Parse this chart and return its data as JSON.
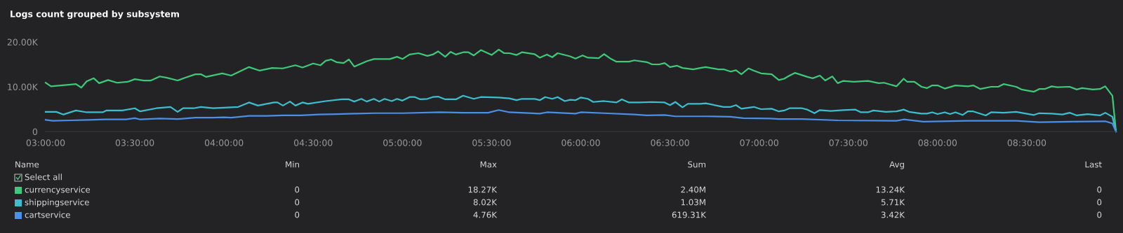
{
  "chart_data": {
    "type": "line",
    "title": "Logs count grouped by subsystem",
    "xticks": [
      {
        "value": 3.0,
        "label": "03:00:00"
      },
      {
        "value": 3.5,
        "label": "03:30:00"
      },
      {
        "value": 4.0,
        "label": "04:00:00"
      },
      {
        "value": 4.5,
        "label": "04:30:00"
      },
      {
        "value": 5.0,
        "label": "05:00:00"
      },
      {
        "value": 5.5,
        "label": "05:30:00"
      },
      {
        "value": 6.0,
        "label": "06:00:00"
      },
      {
        "value": 6.5,
        "label": "06:30:00"
      },
      {
        "value": 7.0,
        "label": "07:00:00"
      },
      {
        "value": 7.5,
        "label": "07:30:00"
      },
      {
        "value": 8.0,
        "label": "08:00:00"
      },
      {
        "value": 8.5,
        "label": "08:30:00"
      }
    ],
    "xlim": [
      3.0,
      9.0
    ],
    "ylim": [
      0,
      20000
    ],
    "yticks": [
      {
        "value": 0,
        "label": "0"
      },
      {
        "value": 10000,
        "label": "10.00K"
      },
      {
        "value": 20000,
        "label": "20.00K"
      }
    ],
    "grid": false,
    "legend": "bottom",
    "marker": "none",
    "line_style": "solid",
    "annotations": [
      "Name",
      "Min",
      "Max",
      "Sum",
      "Avg",
      "Last",
      "Select all",
      "0",
      "18.27K",
      "2.40M",
      "13.24K",
      "0",
      "0",
      "8.02K",
      "1.03M",
      "5.71K",
      "0",
      "0",
      "4.76K",
      "619.31K",
      "3.42K",
      "0"
    ],
    "series": [
      {
        "name": "currencyservice",
        "color": "#3ec97a",
        "x": [
          3.0,
          3.03,
          3.14,
          3.17,
          3.2,
          3.23,
          3.27,
          3.3,
          3.35,
          3.4,
          3.46,
          3.5,
          3.55,
          3.59,
          3.64,
          3.68,
          3.74,
          3.78,
          3.84,
          3.87,
          3.9,
          3.99,
          4.04,
          4.14,
          4.2,
          4.27,
          4.33,
          4.4,
          4.44,
          4.5,
          4.54,
          4.57,
          4.6,
          4.63,
          4.67,
          4.7,
          4.73,
          4.8,
          4.84,
          4.93,
          4.97,
          5.0,
          5.04,
          5.09,
          5.14,
          5.17,
          5.2,
          5.24,
          5.27,
          5.3,
          5.34,
          5.37,
          5.4,
          5.44,
          5.5,
          5.54,
          5.57,
          5.6,
          5.64,
          5.67,
          5.74,
          5.77,
          5.81,
          5.84,
          5.87,
          5.94,
          5.97,
          6.01,
          6.04,
          6.1,
          6.13,
          6.17,
          6.2,
          6.27,
          6.3,
          6.37,
          6.4,
          6.44,
          6.47,
          6.5,
          6.54,
          6.57,
          6.63,
          6.67,
          6.7,
          6.77,
          6.8,
          6.84,
          6.87,
          6.9,
          6.94,
          6.97,
          7.01,
          7.07,
          7.11,
          7.14,
          7.17,
          7.2,
          7.24,
          7.27,
          7.3,
          7.34,
          7.37,
          7.41,
          7.44,
          7.47,
          7.53,
          7.61,
          7.67,
          7.7,
          7.77,
          7.81,
          7.83,
          7.87,
          7.91,
          7.94,
          7.97,
          8.0,
          8.04,
          8.1,
          8.17,
          8.2,
          8.24,
          8.3,
          8.34,
          8.37,
          8.44,
          8.47,
          8.54,
          8.57,
          8.6,
          8.64,
          8.67,
          8.74,
          8.78,
          8.81,
          8.87,
          8.91,
          8.94,
          8.98,
          9.0
        ],
        "values": [
          10900,
          10100,
          10500,
          10600,
          9800,
          11200,
          11900,
          10800,
          11500,
          10900,
          11100,
          11700,
          11400,
          11400,
          12300,
          12000,
          11400,
          12000,
          12800,
          12800,
          12200,
          13000,
          12500,
          14400,
          13600,
          14200,
          14100,
          14800,
          14300,
          15200,
          14800,
          15800,
          16100,
          15500,
          15300,
          16100,
          14500,
          15700,
          16200,
          16200,
          16700,
          16200,
          17200,
          17500,
          16900,
          17200,
          17900,
          16700,
          17800,
          17200,
          17700,
          17700,
          17000,
          18200,
          17100,
          18300,
          17500,
          17500,
          17100,
          17700,
          17300,
          16500,
          17200,
          16600,
          17500,
          16800,
          16300,
          17000,
          16500,
          16400,
          17300,
          16200,
          15600,
          15600,
          15900,
          15500,
          15000,
          15000,
          15300,
          14400,
          14700,
          14200,
          13900,
          14200,
          14400,
          13900,
          13900,
          13400,
          13700,
          12800,
          14100,
          13600,
          13000,
          12800,
          11500,
          11800,
          12500,
          13100,
          12600,
          12200,
          11900,
          12500,
          11400,
          12300,
          10800,
          11300,
          11100,
          11300,
          10800,
          10900,
          10100,
          11800,
          11100,
          11100,
          10000,
          9700,
          10300,
          10300,
          9600,
          10300,
          10100,
          10300,
          9500,
          10000,
          10000,
          10600,
          10000,
          9400,
          8900,
          9500,
          9500,
          10100,
          9900,
          10000,
          9400,
          9700,
          9400,
          9500,
          10100,
          8000,
          0
        ]
      },
      {
        "name": "shippingservice",
        "color": "#3bbfcf",
        "x": [
          3.0,
          3.06,
          3.1,
          3.17,
          3.23,
          3.32,
          3.34,
          3.43,
          3.5,
          3.53,
          3.62,
          3.7,
          3.74,
          3.77,
          3.83,
          3.87,
          3.94,
          4.08,
          4.14,
          4.19,
          4.28,
          4.3,
          4.33,
          4.37,
          4.4,
          4.44,
          4.47,
          4.57,
          4.66,
          4.7,
          4.73,
          4.77,
          4.8,
          4.84,
          4.87,
          4.9,
          4.94,
          4.97,
          5.0,
          5.04,
          5.07,
          5.1,
          5.14,
          5.17,
          5.2,
          5.24,
          5.3,
          5.34,
          5.4,
          5.44,
          5.54,
          5.6,
          5.64,
          5.67,
          5.74,
          5.77,
          5.8,
          5.84,
          5.87,
          5.91,
          5.94,
          5.97,
          6.0,
          6.04,
          6.07,
          6.13,
          6.2,
          6.23,
          6.27,
          6.33,
          6.4,
          6.47,
          6.5,
          6.53,
          6.57,
          6.6,
          6.67,
          6.7,
          6.8,
          6.84,
          6.87,
          6.9,
          6.97,
          7.01,
          7.07,
          7.11,
          7.14,
          7.17,
          7.24,
          7.27,
          7.31,
          7.34,
          7.4,
          7.47,
          7.54,
          7.57,
          7.61,
          7.64,
          7.71,
          7.77,
          7.81,
          7.84,
          7.91,
          7.94,
          7.97,
          8.0,
          8.04,
          8.07,
          8.1,
          8.14,
          8.17,
          8.2,
          8.27,
          8.3,
          8.37,
          8.44,
          8.54,
          8.57,
          8.64,
          8.7,
          8.74,
          8.78,
          8.84,
          8.91,
          8.94,
          8.98,
          9.0
        ],
        "values": [
          4400,
          4400,
          3800,
          4700,
          4300,
          4300,
          4700,
          4700,
          5200,
          4500,
          5200,
          5500,
          4400,
          5200,
          5200,
          5500,
          5200,
          5500,
          6500,
          5800,
          6500,
          6500,
          5800,
          6700,
          5800,
          6500,
          6200,
          6800,
          7200,
          7200,
          6700,
          7300,
          6700,
          7300,
          6700,
          7300,
          6800,
          7300,
          6900,
          7700,
          7700,
          7200,
          7300,
          7700,
          7800,
          7200,
          7200,
          8000,
          7300,
          7700,
          7600,
          7400,
          7000,
          7300,
          7300,
          7000,
          7700,
          7300,
          7700,
          6800,
          7100,
          7000,
          7600,
          7300,
          6600,
          6800,
          6500,
          7200,
          6500,
          6500,
          6600,
          6500,
          5900,
          6600,
          5400,
          6200,
          6200,
          6300,
          5500,
          5500,
          5900,
          5100,
          5500,
          5000,
          5100,
          4500,
          4700,
          5200,
          5200,
          4900,
          4100,
          4800,
          4600,
          4800,
          4900,
          4300,
          4300,
          4700,
          4400,
          4500,
          4900,
          4400,
          4000,
          4000,
          4300,
          3900,
          4300,
          3900,
          4300,
          3700,
          4500,
          4500,
          3600,
          4300,
          4200,
          4400,
          3700,
          4100,
          4000,
          3800,
          4200,
          3600,
          3900,
          3600,
          4200,
          3300,
          0
        ]
      },
      {
        "name": "cartservice",
        "color": "#4a8fe8",
        "x": [
          3.0,
          3.04,
          3.14,
          3.24,
          3.33,
          3.45,
          3.5,
          3.53,
          3.64,
          3.74,
          3.84,
          3.94,
          4.0,
          4.04,
          4.14,
          4.24,
          4.33,
          4.43,
          4.53,
          4.63,
          4.73,
          4.84,
          4.94,
          5.0,
          5.21,
          5.34,
          5.48,
          5.54,
          5.6,
          5.77,
          5.81,
          5.97,
          6.0,
          6.13,
          6.3,
          6.37,
          6.47,
          6.53,
          6.7,
          6.84,
          6.91,
          7.06,
          7.11,
          7.24,
          7.44,
          7.77,
          7.81,
          7.92,
          8.17,
          8.44,
          8.57,
          8.94,
          8.98,
          9.0
        ],
        "values": [
          2600,
          2400,
          2500,
          2600,
          2700,
          2700,
          3000,
          2700,
          2900,
          2800,
          3100,
          3100,
          3200,
          3100,
          3500,
          3500,
          3600,
          3600,
          3800,
          3900,
          4000,
          4100,
          4100,
          4100,
          4300,
          4200,
          4200,
          4800,
          4300,
          4000,
          4300,
          4000,
          4300,
          4100,
          3800,
          3600,
          3700,
          3400,
          3400,
          3300,
          3000,
          2900,
          2800,
          2800,
          2500,
          2400,
          2700,
          2200,
          2400,
          2400,
          2100,
          2300,
          1800,
          0
        ]
      }
    ]
  }
}
